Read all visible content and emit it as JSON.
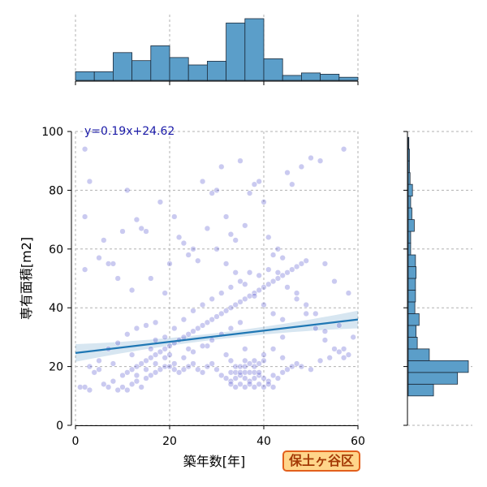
{
  "chart_data": {
    "type": "scatter",
    "xlabel": "築年数[年]",
    "ylabel": "専有面積[m2]",
    "xlim": [
      0,
      60
    ],
    "ylim": [
      0,
      100
    ],
    "x_ticks": [
      0,
      20,
      40,
      60
    ],
    "y_ticks": [
      0,
      20,
      40,
      60,
      80,
      100
    ],
    "grid": true,
    "regression": {
      "equation": "y=0.19x+24.62",
      "slope": 0.19,
      "intercept": 24.62,
      "x_range": [
        0,
        60
      ]
    },
    "ward_label": "保土ヶ谷区",
    "colors": {
      "points": "#2b2bc4",
      "regression_line": "#1f77b4",
      "histogram": "#5b9ec9"
    },
    "x_histogram": {
      "bin_edges": [
        0,
        4,
        8,
        12,
        16,
        20,
        24,
        28,
        32,
        36,
        40,
        44,
        48,
        52,
        56,
        60
      ],
      "relative_heights": [
        0.14,
        0.14,
        0.45,
        0.32,
        0.56,
        0.37,
        0.25,
        0.31,
        0.93,
        1.0,
        0.35,
        0.08,
        0.12,
        0.1,
        0.05
      ]
    },
    "y_histogram": {
      "bin_edges": [
        10,
        14,
        18,
        22,
        26,
        30,
        34,
        38,
        42,
        46,
        50,
        54,
        58,
        62,
        66,
        70,
        74,
        78,
        82,
        86,
        90,
        94,
        98
      ],
      "relative_widths": [
        0.42,
        0.82,
        1.0,
        0.35,
        0.15,
        0.13,
        0.18,
        0.11,
        0.12,
        0.12,
        0.13,
        0.12,
        0.04,
        0.04,
        0.1,
        0.06,
        0.04,
        0.07,
        0.03,
        0.02,
        0.02,
        0.01
      ]
    },
    "points": [
      [
        1,
        13
      ],
      [
        2,
        13
      ],
      [
        3,
        12
      ],
      [
        4,
        18
      ],
      [
        5,
        19
      ],
      [
        6,
        14
      ],
      [
        7,
        13
      ],
      [
        8,
        15
      ],
      [
        9,
        12
      ],
      [
        10,
        13
      ],
      [
        11,
        12
      ],
      [
        12,
        14
      ],
      [
        13,
        15
      ],
      [
        14,
        13
      ],
      [
        15,
        16
      ],
      [
        16,
        17
      ],
      [
        17,
        18
      ],
      [
        18,
        19
      ],
      [
        19,
        20
      ],
      [
        20,
        20
      ],
      [
        21,
        19
      ],
      [
        22,
        18
      ],
      [
        23,
        19
      ],
      [
        24,
        20
      ],
      [
        25,
        21
      ],
      [
        26,
        19
      ],
      [
        27,
        18
      ],
      [
        28,
        20
      ],
      [
        29,
        21
      ],
      [
        30,
        19
      ],
      [
        31,
        17
      ],
      [
        32,
        16
      ],
      [
        33,
        15
      ],
      [
        34,
        16
      ],
      [
        35,
        17
      ],
      [
        36,
        16
      ],
      [
        37,
        15
      ],
      [
        38,
        16
      ],
      [
        39,
        17
      ],
      [
        40,
        16
      ],
      [
        41,
        15
      ],
      [
        42,
        17
      ],
      [
        43,
        16
      ],
      [
        44,
        18
      ],
      [
        45,
        19
      ],
      [
        46,
        20
      ],
      [
        47,
        21
      ],
      [
        48,
        20
      ],
      [
        50,
        19
      ],
      [
        52,
        22
      ],
      [
        54,
        23
      ],
      [
        56,
        25
      ],
      [
        58,
        24
      ],
      [
        33,
        18
      ],
      [
        34,
        18
      ],
      [
        35,
        18
      ],
      [
        36,
        18
      ],
      [
        37,
        18
      ],
      [
        38,
        18
      ],
      [
        39,
        18
      ],
      [
        34,
        20
      ],
      [
        35,
        20
      ],
      [
        36,
        20
      ],
      [
        37,
        21
      ],
      [
        38,
        20
      ],
      [
        39,
        21
      ],
      [
        33,
        22
      ],
      [
        36,
        22
      ],
      [
        38,
        22
      ],
      [
        40,
        22
      ],
      [
        33,
        14
      ],
      [
        35,
        14
      ],
      [
        37,
        14
      ],
      [
        39,
        14
      ],
      [
        41,
        14
      ],
      [
        34,
        13
      ],
      [
        36,
        13
      ],
      [
        38,
        13
      ],
      [
        40,
        13
      ],
      [
        42,
        13
      ],
      [
        10,
        17
      ],
      [
        11,
        18
      ],
      [
        12,
        19
      ],
      [
        13,
        20
      ],
      [
        14,
        21
      ],
      [
        15,
        22
      ],
      [
        16,
        23
      ],
      [
        17,
        24
      ],
      [
        18,
        25
      ],
      [
        19,
        26
      ],
      [
        20,
        27
      ],
      [
        21,
        28
      ],
      [
        22,
        29
      ],
      [
        23,
        30
      ],
      [
        24,
        31
      ],
      [
        25,
        32
      ],
      [
        26,
        33
      ],
      [
        27,
        34
      ],
      [
        28,
        35
      ],
      [
        29,
        36
      ],
      [
        30,
        37
      ],
      [
        31,
        38
      ],
      [
        32,
        39
      ],
      [
        33,
        40
      ],
      [
        34,
        41
      ],
      [
        35,
        42
      ],
      [
        36,
        43
      ],
      [
        37,
        44
      ],
      [
        38,
        45
      ],
      [
        39,
        46
      ],
      [
        40,
        47
      ],
      [
        41,
        48
      ],
      [
        42,
        49
      ],
      [
        43,
        50
      ],
      [
        44,
        51
      ],
      [
        45,
        52
      ],
      [
        46,
        53
      ],
      [
        47,
        54
      ],
      [
        48,
        55
      ],
      [
        49,
        56
      ],
      [
        2,
        53
      ],
      [
        2,
        71
      ],
      [
        2,
        94
      ],
      [
        3,
        83
      ],
      [
        5,
        57
      ],
      [
        6,
        63
      ],
      [
        7,
        55
      ],
      [
        8,
        55
      ],
      [
        9,
        50
      ],
      [
        10,
        66
      ],
      [
        11,
        80
      ],
      [
        12,
        46
      ],
      [
        13,
        70
      ],
      [
        14,
        67
      ],
      [
        15,
        66
      ],
      [
        16,
        50
      ],
      [
        17,
        35
      ],
      [
        18,
        76
      ],
      [
        19,
        45
      ],
      [
        20,
        55
      ],
      [
        21,
        71
      ],
      [
        22,
        64
      ],
      [
        23,
        62
      ],
      [
        24,
        58
      ],
      [
        25,
        60
      ],
      [
        26,
        56
      ],
      [
        27,
        83
      ],
      [
        28,
        67
      ],
      [
        29,
        79
      ],
      [
        30,
        80
      ],
      [
        31,
        88
      ],
      [
        32,
        71
      ],
      [
        33,
        65
      ],
      [
        34,
        63
      ],
      [
        35,
        90
      ],
      [
        36,
        68
      ],
      [
        37,
        79
      ],
      [
        38,
        82
      ],
      [
        39,
        83
      ],
      [
        40,
        76
      ],
      [
        41,
        64
      ],
      [
        42,
        58
      ],
      [
        43,
        60
      ],
      [
        44,
        57
      ],
      [
        45,
        86
      ],
      [
        46,
        82
      ],
      [
        47,
        45
      ],
      [
        48,
        88
      ],
      [
        50,
        91
      ],
      [
        52,
        90
      ],
      [
        53,
        55
      ],
      [
        55,
        49
      ],
      [
        57,
        94
      ],
      [
        58,
        45
      ],
      [
        59,
        30
      ],
      [
        57,
        26
      ],
      [
        56,
        34
      ],
      [
        53,
        32
      ],
      [
        51,
        38
      ],
      [
        49,
        41
      ],
      [
        3,
        20
      ],
      [
        5,
        22
      ],
      [
        7,
        26
      ],
      [
        9,
        28
      ],
      [
        11,
        31
      ],
      [
        13,
        33
      ],
      [
        15,
        34
      ],
      [
        17,
        29
      ],
      [
        19,
        30
      ],
      [
        21,
        33
      ],
      [
        23,
        36
      ],
      [
        25,
        39
      ],
      [
        27,
        41
      ],
      [
        29,
        43
      ],
      [
        31,
        45
      ],
      [
        33,
        47
      ],
      [
        35,
        49
      ],
      [
        37,
        52
      ],
      [
        39,
        51
      ],
      [
        41,
        53
      ],
      [
        43,
        52
      ],
      [
        45,
        47
      ],
      [
        47,
        43
      ],
      [
        49,
        38
      ],
      [
        51,
        33
      ],
      [
        53,
        29
      ],
      [
        55,
        26
      ],
      [
        57,
        23
      ],
      [
        44,
        30
      ],
      [
        42,
        26
      ],
      [
        8,
        21
      ],
      [
        12,
        24
      ],
      [
        16,
        26
      ],
      [
        20,
        24
      ],
      [
        24,
        26
      ],
      [
        28,
        27
      ],
      [
        32,
        24
      ],
      [
        36,
        26
      ],
      [
        40,
        24
      ],
      [
        44,
        23
      ],
      [
        30,
        60
      ],
      [
        32,
        55
      ],
      [
        34,
        52
      ],
      [
        36,
        48
      ],
      [
        38,
        44
      ],
      [
        40,
        41
      ],
      [
        42,
        38
      ],
      [
        44,
        36
      ],
      [
        35,
        35
      ],
      [
        33,
        33
      ],
      [
        31,
        31
      ],
      [
        29,
        29
      ],
      [
        27,
        27
      ],
      [
        25,
        25
      ],
      [
        23,
        23
      ],
      [
        21,
        21
      ],
      [
        19,
        23
      ],
      [
        17,
        21
      ],
      [
        15,
        19
      ],
      [
        13,
        17
      ]
    ]
  }
}
